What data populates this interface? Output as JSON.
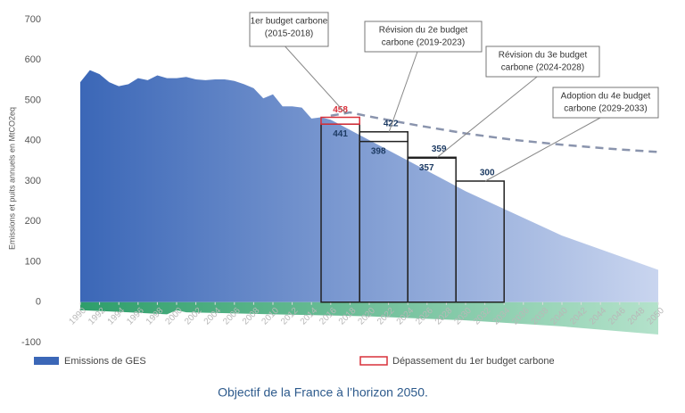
{
  "chart_data": {
    "type": "area",
    "y_label": "Emissions et puits annuels en MtCO2eq",
    "caption": "Objectif de la France à l’horizon 2050.",
    "xlim": [
      1990,
      2050
    ],
    "xticks": [
      1990,
      1992,
      1994,
      1996,
      1998,
      2000,
      2002,
      2004,
      2006,
      2008,
      2010,
      2012,
      2014,
      2016,
      2018,
      2020,
      2022,
      2024,
      2026,
      2028,
      2030,
      2032,
      2034,
      2036,
      2038,
      2040,
      2042,
      2044,
      2046,
      2048,
      2050
    ],
    "ylim": [
      -100,
      700
    ],
    "yticks": [
      -100,
      0,
      100,
      200,
      300,
      400,
      500,
      600,
      700
    ],
    "series": [
      {
        "name": "Emissions de GES",
        "color": "#3b67b7",
        "x": [
          1990,
          1991,
          1992,
          1993,
          1994,
          1995,
          1996,
          1997,
          1998,
          1999,
          2000,
          2001,
          2002,
          2003,
          2004,
          2005,
          2006,
          2007,
          2008,
          2009,
          2010,
          2011,
          2012,
          2013,
          2014,
          2015,
          2016,
          2030,
          2040,
          2050
        ],
        "values": [
          545,
          575,
          565,
          545,
          535,
          540,
          555,
          550,
          562,
          555,
          555,
          558,
          552,
          550,
          552,
          552,
          548,
          540,
          530,
          505,
          515,
          485,
          485,
          482,
          455,
          458,
          452,
          275,
          165,
          80
        ]
      },
      {
        "color": "#2e9e6a",
        "x": [
          1990,
          1995,
          1999,
          2000,
          2001,
          2010,
          2020,
          2030,
          2040,
          2050
        ],
        "values": [
          -20,
          -25,
          -30,
          -20,
          -25,
          -30,
          -35,
          -45,
          -60,
          -80
        ]
      },
      {
        "type": "dashed",
        "color": "#8a94ad",
        "x": [
          2016,
          2018,
          2020,
          2025,
          2030,
          2035,
          2040,
          2045,
          2050
        ],
        "values": [
          462,
          470,
          460,
          438,
          418,
          402,
          390,
          380,
          372
        ]
      }
    ],
    "budgets": [
      {
        "label": [
          "1er budget carbone",
          "(2015-2018)"
        ],
        "start": 2015,
        "end": 2018,
        "value": 441,
        "exceedance": 458
      },
      {
        "label": [
          "Révision du 2e budget",
          "carbone (2019-2023)"
        ],
        "start": 2019,
        "end": 2023,
        "value": 422,
        "inner": 398
      },
      {
        "label": [
          "Révision du 3e budget",
          "carbone (2024-2028)"
        ],
        "start": 2024,
        "end": 2028,
        "value": 359,
        "inner": 357
      },
      {
        "label": [
          "Adoption du 4e budget",
          "carbone (2029-2033)"
        ],
        "start": 2029,
        "end": 2033,
        "value": 300
      }
    ],
    "exceedance_legend": "Dépassement du 1er budget carbone",
    "exceedance_color": "#d9303a"
  }
}
